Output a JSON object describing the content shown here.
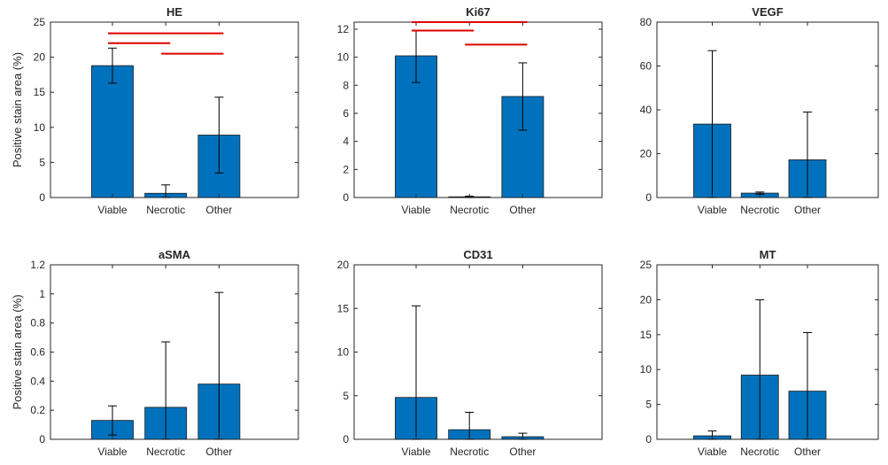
{
  "colors": {
    "bar_fill": "#0072BD",
    "bar_edge": "#1a1a1a",
    "axis": "#262626",
    "significance": "#E00000",
    "background": "#ffffff"
  },
  "chart_data": [
    {
      "type": "bar",
      "title": "HE",
      "categories": [
        "Viable",
        "Necrotic",
        "Other"
      ],
      "values": [
        18.8,
        0.6,
        8.9
      ],
      "error": [
        [
          16.3,
          21.3
        ],
        [
          0.0,
          1.8
        ],
        [
          3.5,
          14.3
        ]
      ],
      "ylabel": "Positive stain area (%)",
      "ylim": [
        0,
        25
      ],
      "yticks": [
        0,
        5,
        10,
        15,
        20,
        25
      ],
      "ytick_labels": [
        "0",
        "5",
        "10",
        "15",
        "20",
        "25"
      ],
      "significance": [
        {
          "from": 0,
          "to": 1,
          "y": 22.0
        },
        {
          "from": 1,
          "to": 2,
          "y": 20.5
        },
        {
          "from": 0,
          "to": 2,
          "y": 23.4
        }
      ]
    },
    {
      "type": "bar",
      "title": "Ki67",
      "categories": [
        "Viable",
        "Necrotic",
        "Other"
      ],
      "values": [
        10.1,
        0.05,
        7.2
      ],
      "error": [
        [
          8.2,
          11.9
        ],
        [
          0.0,
          0.1
        ],
        [
          4.8,
          9.6
        ]
      ],
      "ylabel": "",
      "ylim": [
        0,
        12.5
      ],
      "yticks": [
        0,
        2,
        4,
        6,
        8,
        10,
        12
      ],
      "ytick_labels": [
        "0",
        "2",
        "4",
        "6",
        "8",
        "10",
        "12"
      ],
      "significance": [
        {
          "from": 0,
          "to": 1,
          "y": 11.9
        },
        {
          "from": 1,
          "to": 2,
          "y": 10.9
        },
        {
          "from": 0,
          "to": 2,
          "y": 12.5
        }
      ]
    },
    {
      "type": "bar",
      "title": "VEGF",
      "categories": [
        "Viable",
        "Necrotic",
        "Other"
      ],
      "values": [
        33.5,
        2.0,
        17.2
      ],
      "error": [
        [
          0.0,
          67.0
        ],
        [
          1.5,
          2.5
        ],
        [
          0.0,
          39.0
        ]
      ],
      "ylabel": "",
      "ylim": [
        0,
        80
      ],
      "yticks": [
        0,
        20,
        40,
        60,
        80
      ],
      "ytick_labels": [
        "0",
        "20",
        "40",
        "60",
        "80"
      ],
      "significance": []
    },
    {
      "type": "bar",
      "title": "aSMA",
      "categories": [
        "Viable",
        "Necrotic",
        "Other"
      ],
      "values": [
        0.13,
        0.22,
        0.38
      ],
      "error": [
        [
          0.03,
          0.23
        ],
        [
          0.0,
          0.67
        ],
        [
          0.0,
          1.01
        ]
      ],
      "ylabel": "Positive stain area (%)",
      "ylim": [
        0,
        1.2
      ],
      "yticks": [
        0,
        0.2,
        0.4,
        0.6,
        0.8,
        1.0,
        1.2
      ],
      "ytick_labels": [
        "0",
        "0.2",
        "0.4",
        "0.6",
        "0.8",
        "1",
        "1.2"
      ],
      "significance": []
    },
    {
      "type": "bar",
      "title": "CD31",
      "categories": [
        "Viable",
        "Necrotic",
        "Other"
      ],
      "values": [
        4.8,
        1.1,
        0.3
      ],
      "error": [
        [
          0.0,
          15.3
        ],
        [
          0.0,
          3.1
        ],
        [
          0.0,
          0.7
        ]
      ],
      "ylabel": "",
      "ylim": [
        0,
        20
      ],
      "yticks": [
        0,
        5,
        10,
        15,
        20
      ],
      "ytick_labels": [
        "0",
        "5",
        "10",
        "15",
        "20"
      ],
      "significance": []
    },
    {
      "type": "bar",
      "title": "MT",
      "categories": [
        "Viable",
        "Necrotic",
        "Other"
      ],
      "values": [
        0.5,
        9.2,
        6.9
      ],
      "error": [
        [
          0.0,
          1.2
        ],
        [
          0.0,
          20.0
        ],
        [
          0.0,
          15.3
        ]
      ],
      "ylabel": "",
      "ylim": [
        0,
        25
      ],
      "yticks": [
        0,
        5,
        10,
        15,
        20,
        25
      ],
      "ytick_labels": [
        "0",
        "5",
        "10",
        "15",
        "20",
        "25"
      ],
      "significance": []
    }
  ]
}
